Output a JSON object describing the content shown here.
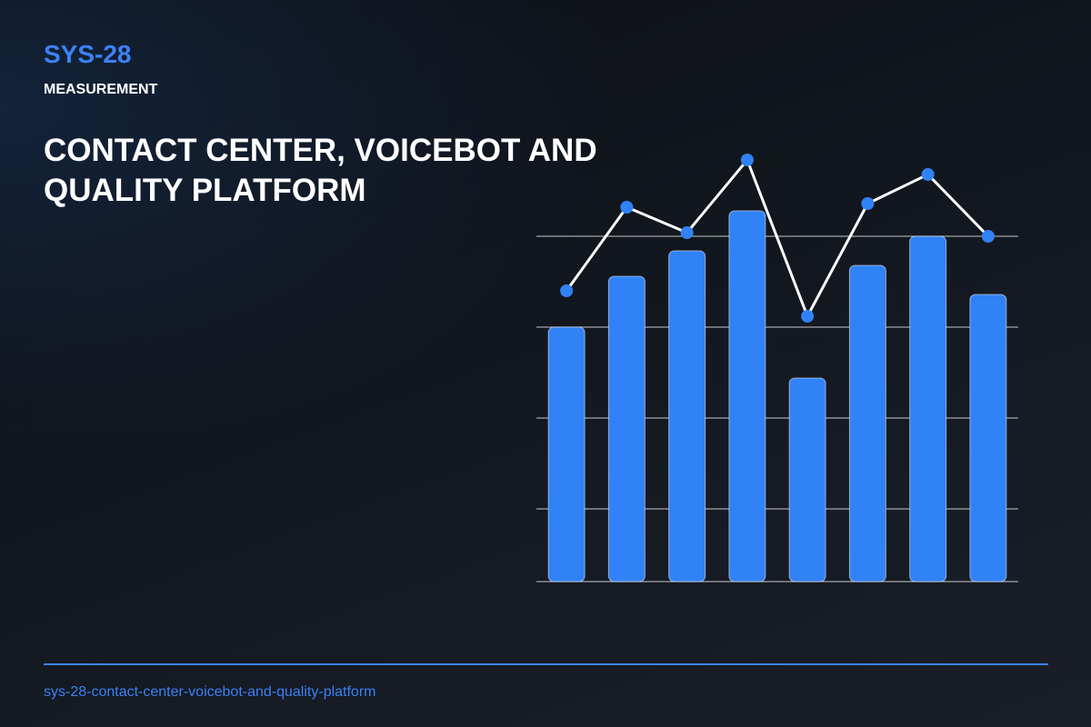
{
  "header": {
    "code": "SYS-28",
    "category": "MEASUREMENT",
    "title": "CONTACT CENTER, VOICEBOT AND QUALITY PLATFORM"
  },
  "footer": {
    "slug": "sys-28-contact-center-voicebot-and-quality-platform"
  },
  "chart_data": {
    "type": "bar-line",
    "categories": [
      null,
      null,
      null,
      null,
      null,
      null,
      null,
      null
    ],
    "series": [
      {
        "type": "bar",
        "color": "#3182f6",
        "values": [
          70,
          84,
          91,
          102,
          56,
          87,
          95,
          79
        ]
      },
      {
        "type": "line",
        "color": "#ffffff",
        "marker_color": "#3182f6",
        "values": [
          80,
          103,
          96,
          116,
          73,
          104,
          112,
          95
        ]
      }
    ],
    "ylim": [
      0,
      120
    ],
    "yticks": [
      0,
      20,
      45,
      70,
      95
    ],
    "grid": true
  }
}
